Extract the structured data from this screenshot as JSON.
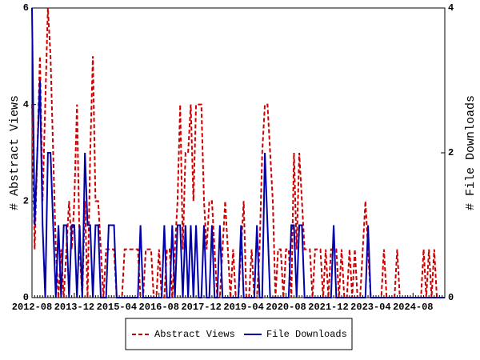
{
  "chart_data": {
    "type": "line",
    "categories": [
      "2012-08",
      null,
      null,
      null,
      null,
      null,
      null,
      null,
      null,
      null,
      null,
      null,
      null,
      null,
      null,
      null,
      "2013-12",
      null,
      null,
      null,
      null,
      null,
      null,
      null,
      null,
      null,
      null,
      null,
      null,
      null,
      null,
      null,
      "2015-04",
      null,
      null,
      null,
      null,
      null,
      null,
      null,
      null,
      null,
      null,
      null,
      null,
      null,
      null,
      null,
      "2016-08",
      null,
      null,
      null,
      null,
      null,
      null,
      null,
      null,
      null,
      null,
      null,
      null,
      null,
      null,
      null,
      "2017-12",
      null,
      null,
      null,
      null,
      null,
      null,
      null,
      null,
      null,
      null,
      null,
      null,
      null,
      null,
      null,
      "2019-04",
      null,
      null,
      null,
      null,
      null,
      null,
      null,
      null,
      null,
      null,
      null,
      null,
      null,
      null,
      null,
      "2020-08",
      null,
      null,
      null,
      null,
      null,
      null,
      null,
      null,
      null,
      null,
      null,
      null,
      null,
      null,
      null,
      "2021-12",
      null,
      null,
      null,
      null,
      null,
      null,
      null,
      null,
      null,
      null,
      null,
      null,
      null,
      null,
      null,
      "2023-04",
      null,
      null,
      null,
      null,
      null,
      null,
      null,
      null,
      null,
      null,
      null,
      null,
      null,
      null,
      null,
      "2024-08",
      null,
      null,
      null,
      null,
      null,
      null,
      null,
      null,
      null,
      null,
      null,
      null
    ],
    "series": [
      {
        "name": "Abstract Views",
        "color": "#cc0000",
        "dashed": true,
        "values": [
          4,
          1,
          3,
          5,
          2,
          4,
          6,
          5,
          3,
          1,
          0,
          1,
          0,
          1,
          2,
          1,
          2,
          4,
          1,
          0,
          2,
          0,
          3,
          5,
          2,
          2,
          1,
          0,
          1,
          1,
          1,
          1,
          0,
          0,
          0,
          1,
          1,
          1,
          1,
          1,
          1,
          0,
          0,
          1,
          1,
          1,
          0,
          0,
          1,
          0,
          0,
          1,
          1,
          0,
          1,
          2,
          4,
          1,
          3,
          3,
          4,
          2,
          4,
          4,
          4,
          2,
          1,
          2,
          2,
          1,
          0,
          0,
          1,
          2,
          1,
          0,
          1,
          0,
          0,
          1,
          2,
          0,
          0,
          1,
          0,
          0,
          1,
          3,
          4,
          4,
          3,
          2,
          0,
          1,
          1,
          0,
          1,
          1,
          0,
          3,
          1,
          3,
          2,
          1,
          1,
          1,
          0,
          1,
          1,
          1,
          0,
          1,
          0,
          1,
          1,
          1,
          0,
          1,
          0,
          0,
          1,
          0,
          1,
          0,
          0,
          1,
          2,
          1,
          0,
          0,
          0,
          0,
          0,
          1,
          0,
          0,
          0,
          0,
          1,
          0,
          0,
          0,
          0,
          0,
          0,
          0,
          0,
          0,
          1,
          0,
          1,
          0,
          1,
          0,
          0,
          0,
          0
        ]
      },
      {
        "name": "File Downloads",
        "color": "#0000aa",
        "axis": "y2",
        "values": [
          4,
          1,
          2,
          3,
          1,
          0,
          2,
          2,
          1,
          0,
          1,
          0,
          1,
          1,
          0,
          1,
          1,
          0,
          1,
          0,
          2,
          1,
          1,
          0,
          1,
          1,
          0,
          0,
          0,
          1,
          1,
          1,
          0,
          0,
          0,
          0,
          0,
          0,
          0,
          0,
          0,
          1,
          0,
          0,
          0,
          0,
          0,
          0,
          0,
          0,
          1,
          0,
          0,
          1,
          0,
          1,
          1,
          0,
          1,
          0,
          1,
          0,
          1,
          0,
          0,
          1,
          0,
          0,
          1,
          0,
          0,
          1,
          0,
          0,
          0,
          0,
          0,
          0,
          0,
          1,
          0,
          0,
          0,
          0,
          0,
          1,
          0,
          0,
          2,
          1,
          0,
          0,
          0,
          0,
          0,
          0,
          0,
          0,
          1,
          1,
          0,
          1,
          1,
          0,
          0,
          0,
          0,
          0,
          0,
          0,
          0,
          0,
          0,
          0,
          1,
          0,
          0,
          0,
          0,
          0,
          0,
          0,
          0,
          0,
          0,
          0,
          0,
          1,
          0,
          0,
          0,
          0,
          0,
          0,
          0,
          0,
          0,
          0,
          0,
          0,
          0,
          0,
          0,
          0,
          0,
          0,
          0,
          0,
          0,
          0,
          0,
          0,
          0,
          0,
          0,
          0,
          0
        ]
      }
    ],
    "y_label": "# Abstract Views",
    "y2_label": "# File Downloads",
    "ylim": [
      0,
      6
    ],
    "yticks": [
      0,
      2,
      4,
      6
    ],
    "y2lim": [
      0,
      4
    ],
    "y2ticks": [
      0,
      2,
      4
    ],
    "legend": "bottom"
  }
}
